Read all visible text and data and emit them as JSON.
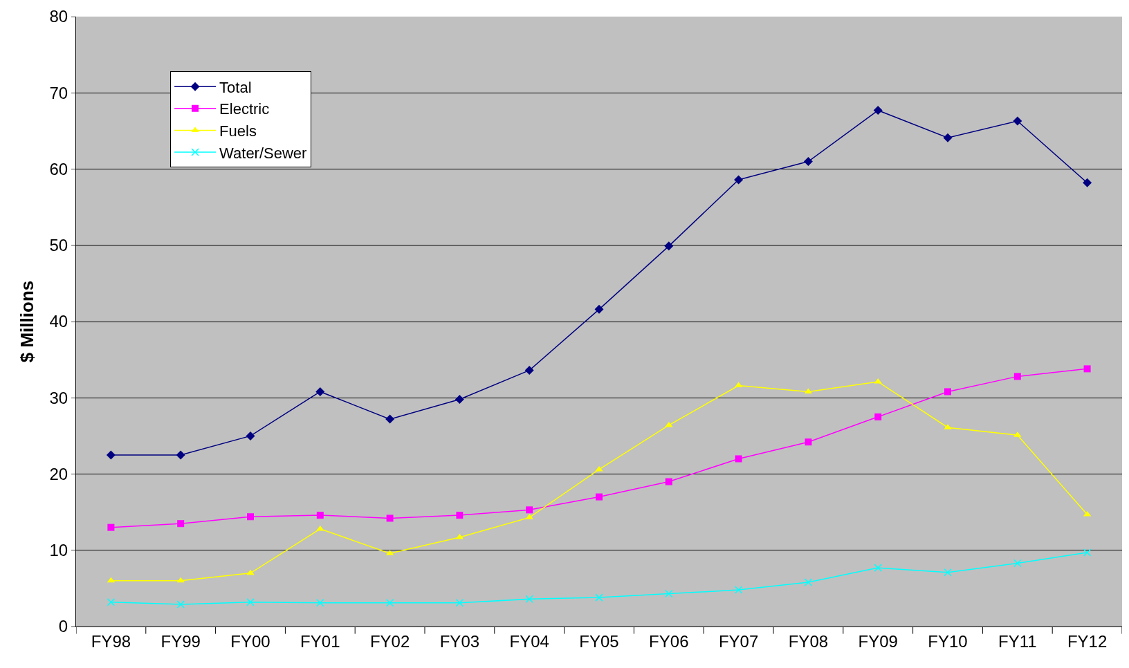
{
  "chart_data": {
    "type": "line",
    "ylabel": "$ Millions",
    "categories": [
      "FY98",
      "FY99",
      "FY00",
      "FY01",
      "FY02",
      "FY03",
      "FY04",
      "FY05",
      "FY06",
      "FY07",
      "FY08",
      "FY09",
      "FY10",
      "FY11",
      "FY12"
    ],
    "series": [
      {
        "name": "Total",
        "color": "#000080",
        "marker": "diamond",
        "values": [
          22.5,
          22.5,
          25,
          30.8,
          27.2,
          29.8,
          33.6,
          41.6,
          49.9,
          58.6,
          61,
          67.7,
          64.1,
          66.3,
          58.2
        ]
      },
      {
        "name": "Electric",
        "color": "#ff00ff",
        "marker": "square",
        "values": [
          13,
          13.5,
          14.4,
          14.6,
          14.2,
          14.6,
          15.3,
          17,
          19,
          22,
          24.2,
          27.5,
          30.8,
          32.8,
          33.8
        ]
      },
      {
        "name": "Fuels",
        "color": "#ffff00",
        "marker": "triangle",
        "values": [
          6,
          6,
          7,
          12.8,
          9.6,
          11.7,
          14.3,
          20.6,
          26.4,
          31.6,
          30.8,
          32.1,
          26.1,
          25.1,
          14.7
        ]
      },
      {
        "name": "Water/Sewer",
        "color": "#00ffff",
        "marker": "cross",
        "values": [
          3.2,
          2.9,
          3.2,
          3.1,
          3.1,
          3.1,
          3.6,
          3.8,
          4.3,
          4.8,
          5.8,
          7.7,
          7.1,
          8.3,
          9.7
        ]
      }
    ],
    "ylim": [
      0,
      80
    ],
    "yticks": [
      0,
      10,
      20,
      30,
      40,
      50,
      60,
      70,
      80
    ],
    "grid": "y",
    "legend": "top left",
    "line_style": "solid"
  }
}
